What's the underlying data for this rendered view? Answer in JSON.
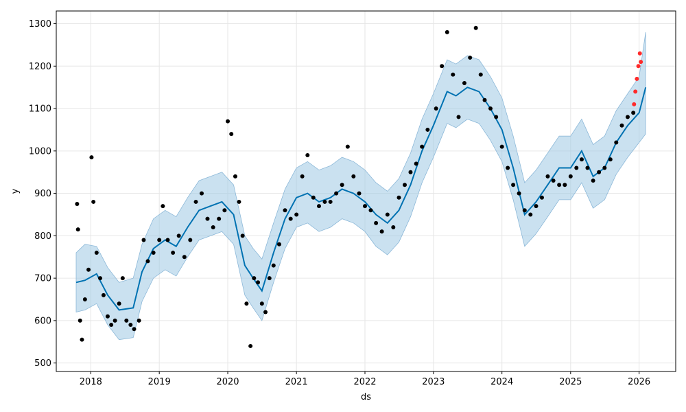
{
  "chart_data": {
    "type": "line",
    "title": "",
    "xlabel": "ds",
    "ylabel": "y",
    "grid": true,
    "legend": "none",
    "xlim": [
      "2017-07-01",
      "2026-07-15"
    ],
    "ylim": [
      480,
      1330
    ],
    "x_ticks": [
      "2018",
      "2019",
      "2020",
      "2021",
      "2022",
      "2023",
      "2024",
      "2025",
      "2026"
    ],
    "y_ticks": [
      500,
      600,
      700,
      800,
      900,
      1000,
      1100,
      1200,
      1300
    ],
    "colors": {
      "forecast_line": "#0072B2",
      "uncertainty_band": "#9FC8E3",
      "observed_points": "#000000",
      "recent_points": "#FF2A2A",
      "grid": "#E6E6E6"
    },
    "series": [
      {
        "role": "forecast",
        "x": [
          "2017-10-15",
          "2017-12-01",
          "2018-02-01",
          "2018-04-01",
          "2018-06-01",
          "2018-08-15",
          "2018-10-01",
          "2018-12-01",
          "2019-02-01",
          "2019-04-01",
          "2019-06-01",
          "2019-08-01",
          "2019-10-01",
          "2019-12-01",
          "2020-02-01",
          "2020-04-01",
          "2020-05-15",
          "2020-07-01",
          "2020-09-01",
          "2020-11-01",
          "2021-01-01",
          "2021-03-01",
          "2021-05-01",
          "2021-07-01",
          "2021-09-01",
          "2021-11-01",
          "2022-01-01",
          "2022-03-01",
          "2022-05-01",
          "2022-07-01",
          "2022-09-01",
          "2022-11-01",
          "2023-01-01",
          "2023-03-15",
          "2023-05-01",
          "2023-07-01",
          "2023-09-01",
          "2023-11-01",
          "2024-01-01",
          "2024-03-01",
          "2024-05-01",
          "2024-07-01",
          "2024-09-01",
          "2024-11-01",
          "2025-01-01",
          "2025-03-01",
          "2025-05-01",
          "2025-07-01",
          "2025-09-01",
          "2025-11-01",
          "2026-01-01",
          "2026-02-05"
        ],
        "y": [
          690,
          695,
          710,
          660,
          625,
          630,
          715,
          770,
          790,
          775,
          820,
          860,
          870,
          880,
          850,
          730,
          700,
          670,
          760,
          840,
          890,
          900,
          880,
          890,
          910,
          900,
          880,
          850,
          830,
          860,
          920,
          1000,
          1060,
          1140,
          1130,
          1150,
          1140,
          1100,
          1050,
          960,
          850,
          880,
          920,
          960,
          960,
          1000,
          940,
          960,
          1020,
          1060,
          1090,
          1150
        ]
      },
      {
        "role": "upper_bound",
        "x": [
          "2017-10-15",
          "2017-12-01",
          "2018-02-01",
          "2018-04-01",
          "2018-06-01",
          "2018-08-15",
          "2018-10-01",
          "2018-12-01",
          "2019-02-01",
          "2019-04-01",
          "2019-06-01",
          "2019-08-01",
          "2019-10-01",
          "2019-12-01",
          "2020-02-01",
          "2020-04-01",
          "2020-05-15",
          "2020-07-01",
          "2020-09-01",
          "2020-11-01",
          "2021-01-01",
          "2021-03-01",
          "2021-05-01",
          "2021-07-01",
          "2021-09-01",
          "2021-11-01",
          "2022-01-01",
          "2022-03-01",
          "2022-05-01",
          "2022-07-01",
          "2022-09-01",
          "2022-11-01",
          "2023-01-01",
          "2023-03-15",
          "2023-05-01",
          "2023-07-01",
          "2023-09-01",
          "2023-11-01",
          "2024-01-01",
          "2024-03-01",
          "2024-05-01",
          "2024-07-01",
          "2024-09-01",
          "2024-11-01",
          "2025-01-01",
          "2025-03-01",
          "2025-05-01",
          "2025-07-01",
          "2025-09-01",
          "2025-11-01",
          "2026-01-01",
          "2026-02-05"
        ],
        "y": [
          760,
          780,
          775,
          725,
          690,
          700,
          780,
          840,
          860,
          845,
          890,
          930,
          940,
          950,
          920,
          800,
          770,
          745,
          830,
          910,
          960,
          975,
          955,
          965,
          985,
          975,
          955,
          925,
          905,
          935,
          995,
          1075,
          1135,
          1215,
          1205,
          1225,
          1215,
          1175,
          1125,
          1035,
          925,
          955,
          995,
          1035,
          1035,
          1075,
          1015,
          1035,
          1095,
          1135,
          1175,
          1280
        ]
      },
      {
        "role": "lower_bound",
        "x": [
          "2017-10-15",
          "2017-12-01",
          "2018-02-01",
          "2018-04-01",
          "2018-06-01",
          "2018-08-15",
          "2018-10-01",
          "2018-12-01",
          "2019-02-01",
          "2019-04-01",
          "2019-06-01",
          "2019-08-01",
          "2019-10-01",
          "2019-12-01",
          "2020-02-01",
          "2020-04-01",
          "2020-05-15",
          "2020-07-01",
          "2020-09-01",
          "2020-11-01",
          "2021-01-01",
          "2021-03-01",
          "2021-05-01",
          "2021-07-01",
          "2021-09-01",
          "2021-11-01",
          "2022-01-01",
          "2022-03-01",
          "2022-05-01",
          "2022-07-01",
          "2022-09-01",
          "2022-11-01",
          "2023-01-01",
          "2023-03-15",
          "2023-05-01",
          "2023-07-01",
          "2023-09-01",
          "2023-11-01",
          "2024-01-01",
          "2024-03-01",
          "2024-05-01",
          "2024-07-01",
          "2024-09-01",
          "2024-11-01",
          "2025-01-01",
          "2025-03-01",
          "2025-05-01",
          "2025-07-01",
          "2025-09-01",
          "2025-11-01",
          "2026-01-01",
          "2026-02-05"
        ],
        "y": [
          620,
          625,
          640,
          590,
          555,
          560,
          645,
          700,
          720,
          705,
          750,
          790,
          800,
          810,
          780,
          660,
          630,
          600,
          690,
          770,
          820,
          830,
          810,
          820,
          840,
          830,
          810,
          775,
          755,
          785,
          845,
          925,
          985,
          1065,
          1055,
          1075,
          1065,
          1025,
          975,
          885,
          775,
          805,
          845,
          885,
          885,
          925,
          865,
          885,
          945,
          985,
          1020,
          1040
        ]
      },
      {
        "role": "observed",
        "x": [
          "2017-10-20",
          "2017-10-25",
          "2017-11-05",
          "2017-11-15",
          "2017-12-01",
          "2017-12-20",
          "2018-01-05",
          "2018-01-15",
          "2018-02-01",
          "2018-02-20",
          "2018-03-10",
          "2018-04-01",
          "2018-04-20",
          "2018-05-10",
          "2018-06-01",
          "2018-06-20",
          "2018-07-10",
          "2018-08-01",
          "2018-08-20",
          "2018-09-15",
          "2018-10-10",
          "2018-11-01",
          "2018-12-01",
          "2019-01-01",
          "2019-01-20",
          "2019-02-15",
          "2019-03-15",
          "2019-04-15",
          "2019-05-15",
          "2019-06-15",
          "2019-07-15",
          "2019-08-15",
          "2019-09-15",
          "2019-10-15",
          "2019-11-15",
          "2019-12-15",
          "2020-01-01",
          "2020-01-20",
          "2020-02-10",
          "2020-03-01",
          "2020-03-20",
          "2020-04-10",
          "2020-05-01",
          "2020-05-20",
          "2020-06-10",
          "2020-07-01",
          "2020-07-20",
          "2020-08-10",
          "2020-09-01",
          "2020-10-01",
          "2020-11-01",
          "2020-12-01",
          "2021-01-01",
          "2021-02-01",
          "2021-03-01",
          "2021-04-01",
          "2021-05-01",
          "2021-06-01",
          "2021-07-01",
          "2021-08-01",
          "2021-09-01",
          "2021-10-01",
          "2021-11-01",
          "2021-12-01",
          "2022-01-01",
          "2022-02-01",
          "2022-03-01",
          "2022-04-01",
          "2022-05-01",
          "2022-06-01",
          "2022-07-01",
          "2022-08-01",
          "2022-09-01",
          "2022-10-01",
          "2022-11-01",
          "2022-12-01",
          "2023-01-15",
          "2023-02-15",
          "2023-03-15",
          "2023-04-15",
          "2023-05-15",
          "2023-06-15",
          "2023-07-15",
          "2023-08-15",
          "2023-09-10",
          "2023-10-01",
          "2023-11-01",
          "2023-12-01",
          "2024-01-01",
          "2024-02-01",
          "2024-03-01",
          "2024-04-01",
          "2024-05-01",
          "2024-06-01",
          "2024-07-01",
          "2024-08-01",
          "2024-09-01",
          "2024-10-01",
          "2024-11-01",
          "2024-12-01",
          "2025-01-01",
          "2025-02-01",
          "2025-03-01",
          "2025-04-01",
          "2025-05-01",
          "2025-06-01",
          "2025-07-01",
          "2025-08-01",
          "2025-09-01",
          "2025-10-01",
          "2025-11-01",
          "2025-12-01"
        ],
        "y": [
          875,
          815,
          600,
          555,
          650,
          720,
          985,
          880,
          760,
          700,
          660,
          610,
          590,
          600,
          640,
          700,
          600,
          590,
          580,
          600,
          790,
          740,
          760,
          790,
          870,
          790,
          760,
          800,
          750,
          790,
          880,
          900,
          840,
          820,
          840,
          860,
          1070,
          1040,
          940,
          880,
          800,
          640,
          540,
          700,
          690,
          640,
          620,
          700,
          730,
          780,
          860,
          840,
          850,
          940,
          990,
          890,
          870,
          880,
          880,
          900,
          920,
          1010,
          940,
          900,
          870,
          860,
          830,
          810,
          850,
          820,
          890,
          920,
          950,
          970,
          1010,
          1050,
          1100,
          1200,
          1280,
          1180,
          1080,
          1160,
          1220,
          1290,
          1180,
          1120,
          1100,
          1080,
          1010,
          960,
          920,
          900,
          860,
          850,
          870,
          890,
          940,
          930,
          920,
          920,
          940,
          960,
          980,
          960,
          930,
          950,
          960,
          980,
          1020,
          1060,
          1080,
          1090
        ]
      },
      {
        "role": "recent",
        "x": [
          "2025-12-05",
          "2025-12-12",
          "2025-12-20",
          "2025-12-28",
          "2026-01-05",
          "2026-01-10"
        ],
        "y": [
          1110,
          1140,
          1170,
          1200,
          1230,
          1210
        ]
      }
    ]
  }
}
